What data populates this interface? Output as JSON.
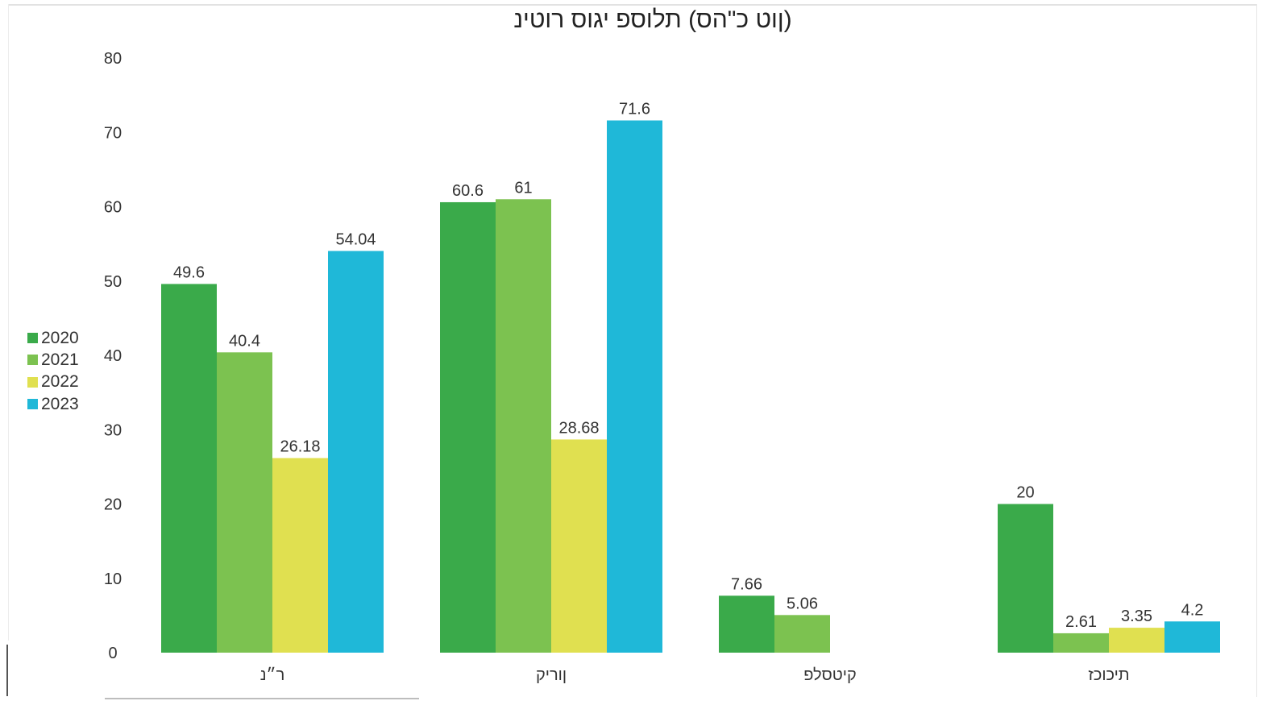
{
  "chart_data": {
    "type": "bar",
    "title": "(ןוט כ\"הס) תלוספ יגוס רוטינ",
    "xlabel": "",
    "ylabel": "",
    "ylim": [
      0,
      80
    ],
    "y_ticks": [
      0,
      10,
      20,
      30,
      40,
      50,
      60,
      70,
      80
    ],
    "grid": false,
    "legend_position": "left",
    "categories": [
      "ר״נ",
      "ןוריק",
      "קיטסלפ",
      "תיכוכז"
    ],
    "series": [
      {
        "name": "2020",
        "color": "#3aaa4a",
        "values": [
          49.6,
          60.6,
          7.66,
          20
        ],
        "labels": [
          "49.6",
          "60.6",
          "7.66",
          "20"
        ]
      },
      {
        "name": "2021",
        "color": "#7cc250",
        "values": [
          40.4,
          61,
          5.06,
          2.61
        ],
        "labels": [
          "40.4",
          "61",
          "5.06",
          "2.61"
        ]
      },
      {
        "name": "2022",
        "color": "#e0e050",
        "values": [
          26.18,
          28.68,
          null,
          3.35
        ],
        "labels": [
          "26.18",
          "28.68",
          "",
          "3.35"
        ]
      },
      {
        "name": "2023",
        "color": "#1fb8d8",
        "values": [
          54.04,
          71.6,
          null,
          4.2
        ],
        "labels": [
          "54.04",
          "71.6",
          "",
          "4.2"
        ]
      }
    ]
  }
}
